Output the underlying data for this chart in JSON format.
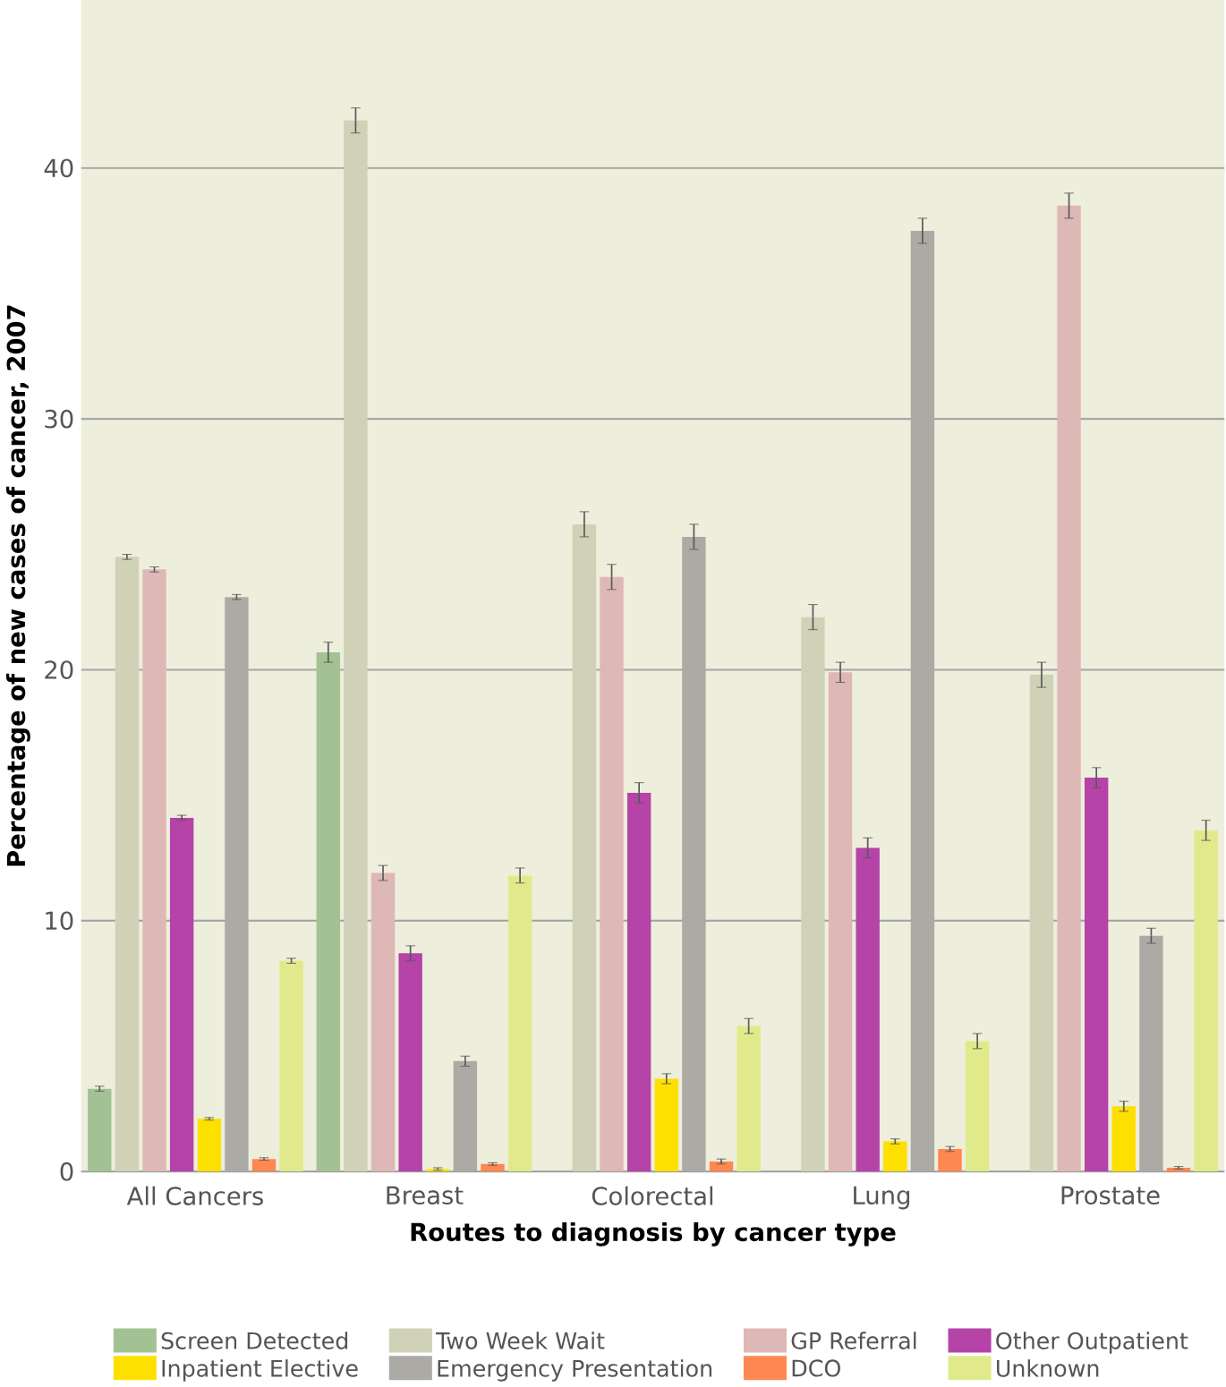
{
  "chart_data": {
    "type": "bar",
    "xlabel": "Routes to diagnosis by cancer type",
    "ylabel": "Percentage of new cases of cancer, 2007",
    "categories": [
      "All Cancers",
      "Breast",
      "Colorectal",
      "Lung",
      "Prostate"
    ],
    "series": [
      {
        "name": "Screen Detected",
        "color": "#a3c293",
        "values": [
          3.3,
          20.7,
          null,
          null,
          null
        ],
        "errors": [
          0.1,
          0.4,
          null,
          null,
          null
        ]
      },
      {
        "name": "Two Week Wait",
        "color": "#cfd2b6",
        "values": [
          24.5,
          41.9,
          25.8,
          22.1,
          19.8
        ],
        "errors": [
          0.1,
          0.5,
          0.5,
          0.5,
          0.5
        ]
      },
      {
        "name": "GP Referral",
        "color": "#deb8b6",
        "values": [
          24.0,
          11.9,
          23.7,
          19.9,
          38.5
        ],
        "errors": [
          0.1,
          0.3,
          0.5,
          0.4,
          0.5
        ]
      },
      {
        "name": "Other Outpatient",
        "color": "#b543a8",
        "values": [
          14.1,
          8.7,
          15.1,
          12.9,
          15.7
        ],
        "errors": [
          0.1,
          0.3,
          0.4,
          0.4,
          0.4
        ]
      },
      {
        "name": "Inpatient Elective",
        "color": "#fde000",
        "values": [
          2.1,
          0.1,
          3.7,
          1.2,
          2.6
        ],
        "errors": [
          0.05,
          0.05,
          0.2,
          0.1,
          0.2
        ]
      },
      {
        "name": "Emergency Presentation",
        "color": "#acaaa5",
        "values": [
          22.9,
          4.4,
          25.3,
          37.5,
          9.4
        ],
        "errors": [
          0.1,
          0.2,
          0.5,
          0.5,
          0.3
        ]
      },
      {
        "name": "DCO",
        "color": "#fe8850",
        "values": [
          0.5,
          0.3,
          0.4,
          0.9,
          0.15
        ],
        "errors": [
          0.05,
          0.05,
          0.1,
          0.1,
          0.05
        ]
      },
      {
        "name": "Unknown",
        "color": "#e0ea8a",
        "values": [
          8.4,
          11.8,
          5.8,
          5.2,
          13.6
        ],
        "errors": [
          0.1,
          0.3,
          0.3,
          0.3,
          0.4
        ]
      }
    ],
    "ylim": [
      0,
      46.7
    ],
    "yticks": [
      0,
      10,
      20,
      30,
      40
    ],
    "grid": "y",
    "legend": "bottom"
  }
}
